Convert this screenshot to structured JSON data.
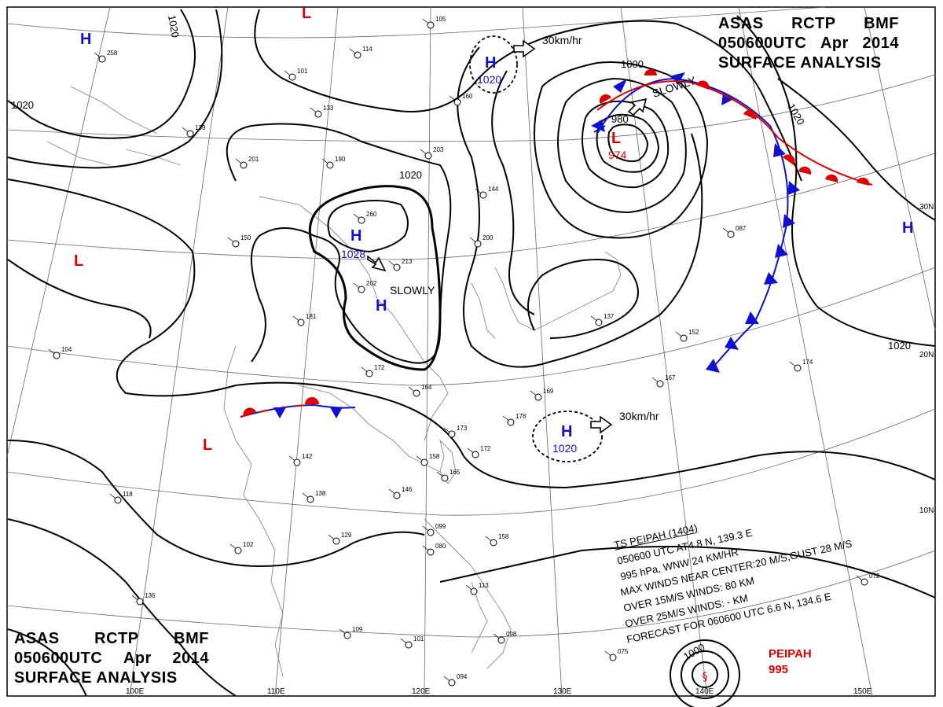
{
  "header": {
    "line1": [
      "ASAS",
      "RCTP",
      "BMF"
    ],
    "line2": [
      "050600UTC",
      "Apr",
      "2014"
    ],
    "line3": "SURFACE ANALYSIS"
  },
  "isobars": {
    "p1020_a": "1020",
    "p1020_b": "1020",
    "p1020_c": "1020",
    "p1020_d": "1020",
    "p1020_e": "1020",
    "p1000": "1000",
    "p980": "980",
    "p1000_ts": "1000"
  },
  "centers": {
    "high_letter": "H",
    "low_letter": "L",
    "high_1028_value": "1028",
    "high_1020_ne_value": "1020",
    "high_1020_se_value": "1020",
    "low_974_value": "974"
  },
  "motion": {
    "speed_ne": "30km/hr",
    "speed_se": "30km/hr",
    "slowly_w": "SLOWLY",
    "slowly_ne": "SLOWLY"
  },
  "grid_labels": {
    "lon_100": "100E",
    "lon_110": "110E",
    "lon_120": "120E",
    "lon_130": "130E",
    "lon_140": "140E",
    "lon_150": "150E",
    "lat_30": "30N",
    "lat_20": "20N",
    "lat_10": "10N"
  },
  "storm_box": {
    "l1": "TS PEIPAH (1404)",
    "l2": "050600 UTC AT4.8 N, 139.3 E",
    "l3": "995 hPa, WNW 24 KM/HR",
    "l4": "MAX WINDS NEAR CENTER:20 M/S,GUST 28 M/S",
    "l5": "OVER 15M/S WINDS: 80 KM",
    "l6": "OVER 25M/S WINDS: - KM",
    "l7": "FORECAST FOR 060600 UTC 6.6 N, 134.6 E"
  },
  "storm_label": {
    "name": "PEIPAH",
    "pressure": "995"
  },
  "station_plots": [
    {
      "v": "258"
    },
    {
      "v": "105"
    },
    {
      "v": "114"
    },
    {
      "v": "101"
    },
    {
      "v": "133"
    },
    {
      "v": "139"
    },
    {
      "v": "190"
    },
    {
      "v": "201"
    },
    {
      "v": "260"
    },
    {
      "v": "213"
    },
    {
      "v": "202"
    },
    {
      "v": "181"
    },
    {
      "v": "172"
    },
    {
      "v": "164"
    },
    {
      "v": "173"
    },
    {
      "v": "158"
    },
    {
      "v": "165"
    },
    {
      "v": "146"
    },
    {
      "v": "138"
    },
    {
      "v": "142"
    },
    {
      "v": "150"
    },
    {
      "v": "129"
    },
    {
      "v": "102"
    },
    {
      "v": "136"
    },
    {
      "v": "118"
    },
    {
      "v": "104"
    },
    {
      "v": "099"
    },
    {
      "v": "080"
    },
    {
      "v": "113"
    },
    {
      "v": "109"
    },
    {
      "v": "101"
    },
    {
      "v": "094"
    },
    {
      "v": "098"
    },
    {
      "v": "160"
    },
    {
      "v": "203"
    },
    {
      "v": "200"
    },
    {
      "v": "144"
    },
    {
      "v": "087"
    },
    {
      "v": "152"
    },
    {
      "v": "167"
    },
    {
      "v": "174"
    },
    {
      "v": "137"
    },
    {
      "v": "169"
    },
    {
      "v": "178"
    },
    {
      "v": "172"
    },
    {
      "v": "075"
    },
    {
      "v": "072"
    },
    {
      "v": "158"
    }
  ],
  "colors": {
    "isobar": "#000000",
    "grid": "#666666",
    "coast": "#888888",
    "high": "#1010d0",
    "low": "#e00000",
    "cold_front": "#1010d0",
    "warm_front": "#e00000"
  }
}
